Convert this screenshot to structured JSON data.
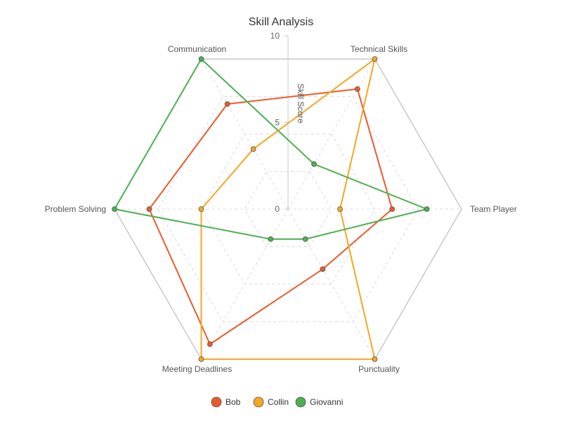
{
  "chart_data": {
    "type": "radar",
    "title": "Skill Analysis",
    "radial_axis_label": "Skill Score",
    "range": [
      0,
      10
    ],
    "ticks": [
      0,
      5,
      10
    ],
    "categories": [
      "Technical Skills",
      "Team Player",
      "Punctuality",
      "Meeting Deadlines",
      "Problem Solving",
      "Communication"
    ],
    "series": [
      {
        "name": "Bob",
        "color": "#ea5b2b",
        "values": [
          8,
          6,
          4,
          9,
          8,
          7
        ]
      },
      {
        "name": "Collin",
        "color": "#f5a623",
        "values": [
          10,
          3,
          10,
          10,
          5,
          4
        ]
      },
      {
        "name": "Giovanni",
        "color": "#4caf50",
        "values": [
          3,
          8,
          2,
          2,
          10,
          10
        ]
      }
    ],
    "legend_position": "bottom"
  }
}
